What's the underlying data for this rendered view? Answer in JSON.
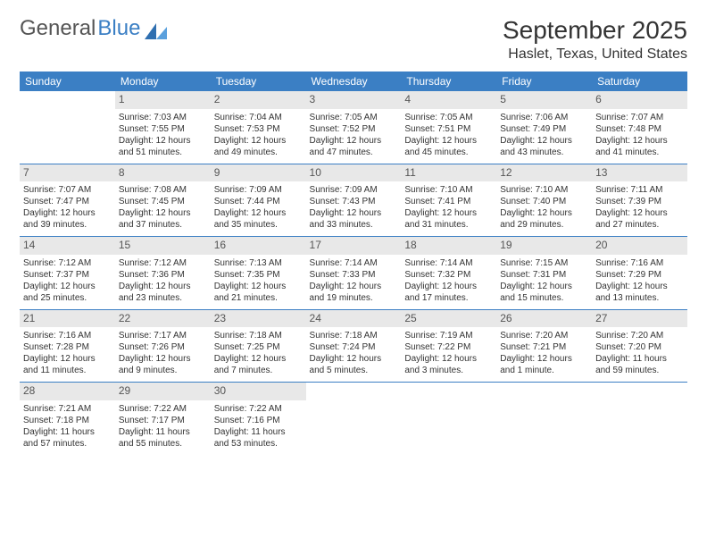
{
  "logo": {
    "text1": "General",
    "text2": "Blue"
  },
  "header": {
    "month_title": "September 2025",
    "location": "Haslet, Texas, United States"
  },
  "colors": {
    "header_bg": "#3b7fc4",
    "header_text": "#ffffff",
    "daynum_bg": "#e8e8e8",
    "row_border": "#3b7fc4"
  },
  "weekdays": [
    "Sunday",
    "Monday",
    "Tuesday",
    "Wednesday",
    "Thursday",
    "Friday",
    "Saturday"
  ],
  "weeks": [
    [
      {
        "empty": true
      },
      {
        "day": "1",
        "sunrise": "Sunrise: 7:03 AM",
        "sunset": "Sunset: 7:55 PM",
        "daylight1": "Daylight: 12 hours",
        "daylight2": "and 51 minutes."
      },
      {
        "day": "2",
        "sunrise": "Sunrise: 7:04 AM",
        "sunset": "Sunset: 7:53 PM",
        "daylight1": "Daylight: 12 hours",
        "daylight2": "and 49 minutes."
      },
      {
        "day": "3",
        "sunrise": "Sunrise: 7:05 AM",
        "sunset": "Sunset: 7:52 PM",
        "daylight1": "Daylight: 12 hours",
        "daylight2": "and 47 minutes."
      },
      {
        "day": "4",
        "sunrise": "Sunrise: 7:05 AM",
        "sunset": "Sunset: 7:51 PM",
        "daylight1": "Daylight: 12 hours",
        "daylight2": "and 45 minutes."
      },
      {
        "day": "5",
        "sunrise": "Sunrise: 7:06 AM",
        "sunset": "Sunset: 7:49 PM",
        "daylight1": "Daylight: 12 hours",
        "daylight2": "and 43 minutes."
      },
      {
        "day": "6",
        "sunrise": "Sunrise: 7:07 AM",
        "sunset": "Sunset: 7:48 PM",
        "daylight1": "Daylight: 12 hours",
        "daylight2": "and 41 minutes."
      }
    ],
    [
      {
        "day": "7",
        "sunrise": "Sunrise: 7:07 AM",
        "sunset": "Sunset: 7:47 PM",
        "daylight1": "Daylight: 12 hours",
        "daylight2": "and 39 minutes."
      },
      {
        "day": "8",
        "sunrise": "Sunrise: 7:08 AM",
        "sunset": "Sunset: 7:45 PM",
        "daylight1": "Daylight: 12 hours",
        "daylight2": "and 37 minutes."
      },
      {
        "day": "9",
        "sunrise": "Sunrise: 7:09 AM",
        "sunset": "Sunset: 7:44 PM",
        "daylight1": "Daylight: 12 hours",
        "daylight2": "and 35 minutes."
      },
      {
        "day": "10",
        "sunrise": "Sunrise: 7:09 AM",
        "sunset": "Sunset: 7:43 PM",
        "daylight1": "Daylight: 12 hours",
        "daylight2": "and 33 minutes."
      },
      {
        "day": "11",
        "sunrise": "Sunrise: 7:10 AM",
        "sunset": "Sunset: 7:41 PM",
        "daylight1": "Daylight: 12 hours",
        "daylight2": "and 31 minutes."
      },
      {
        "day": "12",
        "sunrise": "Sunrise: 7:10 AM",
        "sunset": "Sunset: 7:40 PM",
        "daylight1": "Daylight: 12 hours",
        "daylight2": "and 29 minutes."
      },
      {
        "day": "13",
        "sunrise": "Sunrise: 7:11 AM",
        "sunset": "Sunset: 7:39 PM",
        "daylight1": "Daylight: 12 hours",
        "daylight2": "and 27 minutes."
      }
    ],
    [
      {
        "day": "14",
        "sunrise": "Sunrise: 7:12 AM",
        "sunset": "Sunset: 7:37 PM",
        "daylight1": "Daylight: 12 hours",
        "daylight2": "and 25 minutes."
      },
      {
        "day": "15",
        "sunrise": "Sunrise: 7:12 AM",
        "sunset": "Sunset: 7:36 PM",
        "daylight1": "Daylight: 12 hours",
        "daylight2": "and 23 minutes."
      },
      {
        "day": "16",
        "sunrise": "Sunrise: 7:13 AM",
        "sunset": "Sunset: 7:35 PM",
        "daylight1": "Daylight: 12 hours",
        "daylight2": "and 21 minutes."
      },
      {
        "day": "17",
        "sunrise": "Sunrise: 7:14 AM",
        "sunset": "Sunset: 7:33 PM",
        "daylight1": "Daylight: 12 hours",
        "daylight2": "and 19 minutes."
      },
      {
        "day": "18",
        "sunrise": "Sunrise: 7:14 AM",
        "sunset": "Sunset: 7:32 PM",
        "daylight1": "Daylight: 12 hours",
        "daylight2": "and 17 minutes."
      },
      {
        "day": "19",
        "sunrise": "Sunrise: 7:15 AM",
        "sunset": "Sunset: 7:31 PM",
        "daylight1": "Daylight: 12 hours",
        "daylight2": "and 15 minutes."
      },
      {
        "day": "20",
        "sunrise": "Sunrise: 7:16 AM",
        "sunset": "Sunset: 7:29 PM",
        "daylight1": "Daylight: 12 hours",
        "daylight2": "and 13 minutes."
      }
    ],
    [
      {
        "day": "21",
        "sunrise": "Sunrise: 7:16 AM",
        "sunset": "Sunset: 7:28 PM",
        "daylight1": "Daylight: 12 hours",
        "daylight2": "and 11 minutes."
      },
      {
        "day": "22",
        "sunrise": "Sunrise: 7:17 AM",
        "sunset": "Sunset: 7:26 PM",
        "daylight1": "Daylight: 12 hours",
        "daylight2": "and 9 minutes."
      },
      {
        "day": "23",
        "sunrise": "Sunrise: 7:18 AM",
        "sunset": "Sunset: 7:25 PM",
        "daylight1": "Daylight: 12 hours",
        "daylight2": "and 7 minutes."
      },
      {
        "day": "24",
        "sunrise": "Sunrise: 7:18 AM",
        "sunset": "Sunset: 7:24 PM",
        "daylight1": "Daylight: 12 hours",
        "daylight2": "and 5 minutes."
      },
      {
        "day": "25",
        "sunrise": "Sunrise: 7:19 AM",
        "sunset": "Sunset: 7:22 PM",
        "daylight1": "Daylight: 12 hours",
        "daylight2": "and 3 minutes."
      },
      {
        "day": "26",
        "sunrise": "Sunrise: 7:20 AM",
        "sunset": "Sunset: 7:21 PM",
        "daylight1": "Daylight: 12 hours",
        "daylight2": "and 1 minute."
      },
      {
        "day": "27",
        "sunrise": "Sunrise: 7:20 AM",
        "sunset": "Sunset: 7:20 PM",
        "daylight1": "Daylight: 11 hours",
        "daylight2": "and 59 minutes."
      }
    ],
    [
      {
        "day": "28",
        "sunrise": "Sunrise: 7:21 AM",
        "sunset": "Sunset: 7:18 PM",
        "daylight1": "Daylight: 11 hours",
        "daylight2": "and 57 minutes."
      },
      {
        "day": "29",
        "sunrise": "Sunrise: 7:22 AM",
        "sunset": "Sunset: 7:17 PM",
        "daylight1": "Daylight: 11 hours",
        "daylight2": "and 55 minutes."
      },
      {
        "day": "30",
        "sunrise": "Sunrise: 7:22 AM",
        "sunset": "Sunset: 7:16 PM",
        "daylight1": "Daylight: 11 hours",
        "daylight2": "and 53 minutes."
      },
      {
        "empty": true
      },
      {
        "empty": true
      },
      {
        "empty": true
      },
      {
        "empty": true
      }
    ]
  ]
}
